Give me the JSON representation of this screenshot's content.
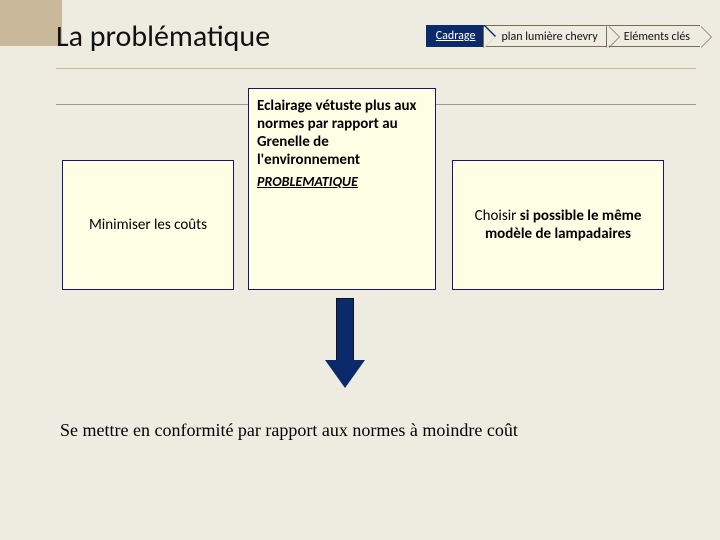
{
  "title": "La problématique",
  "breadcrumb": {
    "active": "Cadrage",
    "mid": "plan lumière chevry",
    "last": "Eléments clés"
  },
  "left_box": "Minimiser les coûts",
  "center_box": {
    "body": "Eclairage vétuste plus aux normes par rapport au Grenelle de l'environnement",
    "caption": "PROBLEMATIQUE"
  },
  "right_box_prefix": "Choisir",
  "right_box_bold": " si possible le même modèle de lampadaires",
  "conclusion": "Se mettre en conformité par rapport aux normes à moindre coût",
  "colors": {
    "page_bg": "#eeece1",
    "bookmark": "#c9b99a",
    "box_border": "#16166b",
    "box_bg": "#ffffe6",
    "accent_dark": "#0a2a6c"
  }
}
